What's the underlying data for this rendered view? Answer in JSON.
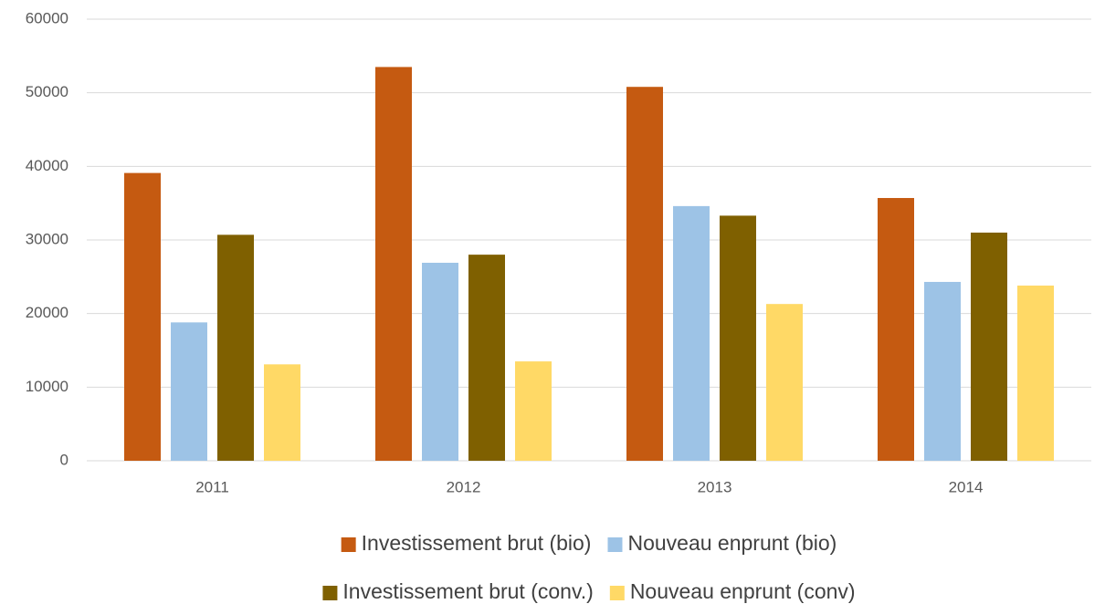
{
  "chart_data": {
    "type": "bar",
    "categories": [
      "2011",
      "2012",
      "2013",
      "2014"
    ],
    "series": [
      {
        "name": "Investissement brut (bio)",
        "color": "#c55a11",
        "values": [
          39100,
          53500,
          50800,
          35700
        ]
      },
      {
        "name": "Nouveau enprunt (bio)",
        "color": "#9dc3e6",
        "values": [
          18800,
          26900,
          34600,
          24300
        ]
      },
      {
        "name": "Investissement brut (conv.)",
        "color": "#7f6000",
        "values": [
          30700,
          28000,
          33300,
          31000
        ]
      },
      {
        "name": "Nouveau enprunt (conv)",
        "color": "#ffd966",
        "values": [
          13100,
          13500,
          21300,
          23800
        ]
      }
    ],
    "ylim": [
      0,
      60000
    ],
    "yticks": [
      0,
      10000,
      20000,
      30000,
      40000,
      50000,
      60000
    ],
    "grid": true,
    "legend": "bottom"
  }
}
